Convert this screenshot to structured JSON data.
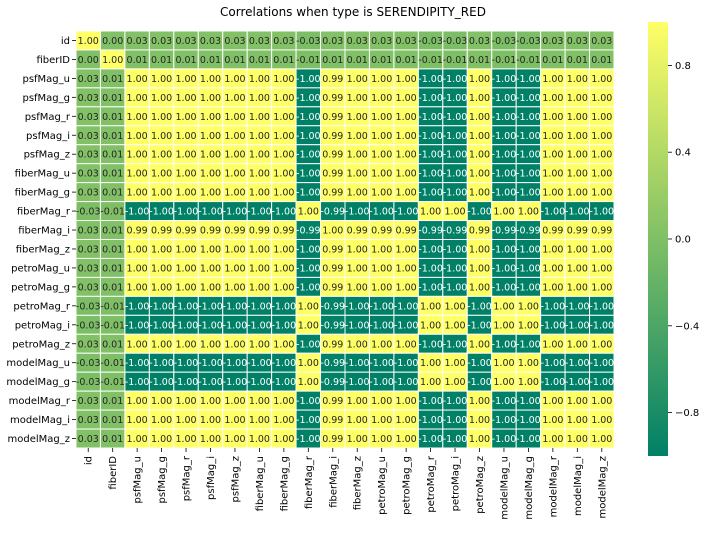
{
  "chart_data": {
    "type": "heatmap",
    "title": "Correlations when type is SERENDIPITY_RED",
    "labels": [
      "id",
      "fiberID",
      "psfMag_u",
      "psfMag_g",
      "psfMag_r",
      "psfMag_i",
      "psfMag_z",
      "fiberMag_u",
      "fiberMag_g",
      "fiberMag_r",
      "fiberMag_i",
      "fiberMag_z",
      "petroMag_u",
      "petroMag_g",
      "petroMag_r",
      "petroMag_i",
      "petroMag_z",
      "modelMag_u",
      "modelMag_g",
      "modelMag_r",
      "modelMag_i",
      "modelMag_z"
    ],
    "values": [
      [
        1.0,
        0.0,
        0.03,
        0.03,
        0.03,
        0.03,
        0.03,
        0.03,
        0.03,
        -0.03,
        0.03,
        0.03,
        0.03,
        0.03,
        -0.03,
        -0.03,
        0.03,
        -0.03,
        -0.03,
        0.03,
        0.03,
        0.03
      ],
      [
        0.0,
        1.0,
        0.01,
        0.01,
        0.01,
        0.01,
        0.01,
        0.01,
        0.01,
        -0.01,
        0.01,
        0.01,
        0.01,
        0.01,
        -0.01,
        -0.01,
        0.01,
        -0.01,
        -0.01,
        0.01,
        0.01,
        0.01
      ],
      [
        0.03,
        0.01,
        1.0,
        1.0,
        1.0,
        1.0,
        1.0,
        1.0,
        1.0,
        -1.0,
        0.99,
        1.0,
        1.0,
        1.0,
        -1.0,
        -1.0,
        1.0,
        -1.0,
        -1.0,
        1.0,
        1.0,
        1.0
      ],
      [
        0.03,
        0.01,
        1.0,
        1.0,
        1.0,
        1.0,
        1.0,
        1.0,
        1.0,
        -1.0,
        0.99,
        1.0,
        1.0,
        1.0,
        -1.0,
        -1.0,
        1.0,
        -1.0,
        -1.0,
        1.0,
        1.0,
        1.0
      ],
      [
        0.03,
        0.01,
        1.0,
        1.0,
        1.0,
        1.0,
        1.0,
        1.0,
        1.0,
        -1.0,
        0.99,
        1.0,
        1.0,
        1.0,
        -1.0,
        -1.0,
        1.0,
        -1.0,
        -1.0,
        1.0,
        1.0,
        1.0
      ],
      [
        0.03,
        0.01,
        1.0,
        1.0,
        1.0,
        1.0,
        1.0,
        1.0,
        1.0,
        -1.0,
        0.99,
        1.0,
        1.0,
        1.0,
        -1.0,
        -1.0,
        1.0,
        -1.0,
        -1.0,
        1.0,
        1.0,
        1.0
      ],
      [
        0.03,
        0.01,
        1.0,
        1.0,
        1.0,
        1.0,
        1.0,
        1.0,
        1.0,
        -1.0,
        0.99,
        1.0,
        1.0,
        1.0,
        -1.0,
        -1.0,
        1.0,
        -1.0,
        -1.0,
        1.0,
        1.0,
        1.0
      ],
      [
        0.03,
        0.01,
        1.0,
        1.0,
        1.0,
        1.0,
        1.0,
        1.0,
        1.0,
        -1.0,
        0.99,
        1.0,
        1.0,
        1.0,
        -1.0,
        -1.0,
        1.0,
        -1.0,
        -1.0,
        1.0,
        1.0,
        1.0
      ],
      [
        0.03,
        0.01,
        1.0,
        1.0,
        1.0,
        1.0,
        1.0,
        1.0,
        1.0,
        -1.0,
        0.99,
        1.0,
        1.0,
        1.0,
        -1.0,
        -1.0,
        1.0,
        -1.0,
        -1.0,
        1.0,
        1.0,
        1.0
      ],
      [
        -0.03,
        -0.01,
        -1.0,
        -1.0,
        -1.0,
        -1.0,
        -1.0,
        -1.0,
        -1.0,
        1.0,
        -0.99,
        -1.0,
        -1.0,
        -1.0,
        1.0,
        1.0,
        -1.0,
        1.0,
        1.0,
        -1.0,
        -1.0,
        -1.0
      ],
      [
        0.03,
        0.01,
        0.99,
        0.99,
        0.99,
        0.99,
        0.99,
        0.99,
        0.99,
        -0.99,
        1.0,
        0.99,
        0.99,
        0.99,
        -0.99,
        -0.99,
        0.99,
        -0.99,
        -0.99,
        0.99,
        0.99,
        0.99
      ],
      [
        0.03,
        0.01,
        1.0,
        1.0,
        1.0,
        1.0,
        1.0,
        1.0,
        1.0,
        -1.0,
        0.99,
        1.0,
        1.0,
        1.0,
        -1.0,
        -1.0,
        1.0,
        -1.0,
        -1.0,
        1.0,
        1.0,
        1.0
      ],
      [
        0.03,
        0.01,
        1.0,
        1.0,
        1.0,
        1.0,
        1.0,
        1.0,
        1.0,
        -1.0,
        0.99,
        1.0,
        1.0,
        1.0,
        -1.0,
        -1.0,
        1.0,
        -1.0,
        -1.0,
        1.0,
        1.0,
        1.0
      ],
      [
        0.03,
        0.01,
        1.0,
        1.0,
        1.0,
        1.0,
        1.0,
        1.0,
        1.0,
        -1.0,
        0.99,
        1.0,
        1.0,
        1.0,
        -1.0,
        -1.0,
        1.0,
        -1.0,
        -1.0,
        1.0,
        1.0,
        1.0
      ],
      [
        -0.03,
        -0.01,
        -1.0,
        -1.0,
        -1.0,
        -1.0,
        -1.0,
        -1.0,
        -1.0,
        1.0,
        -0.99,
        -1.0,
        -1.0,
        -1.0,
        1.0,
        1.0,
        -1.0,
        1.0,
        1.0,
        -1.0,
        -1.0,
        -1.0
      ],
      [
        -0.03,
        -0.01,
        -1.0,
        -1.0,
        -1.0,
        -1.0,
        -1.0,
        -1.0,
        -1.0,
        1.0,
        -0.99,
        -1.0,
        -1.0,
        -1.0,
        1.0,
        1.0,
        -1.0,
        1.0,
        1.0,
        -1.0,
        -1.0,
        -1.0
      ],
      [
        0.03,
        0.01,
        1.0,
        1.0,
        1.0,
        1.0,
        1.0,
        1.0,
        1.0,
        -1.0,
        0.99,
        1.0,
        1.0,
        1.0,
        -1.0,
        -1.0,
        1.0,
        -1.0,
        -1.0,
        1.0,
        1.0,
        1.0
      ],
      [
        -0.03,
        -0.01,
        -1.0,
        -1.0,
        -1.0,
        -1.0,
        -1.0,
        -1.0,
        -1.0,
        1.0,
        -0.99,
        -1.0,
        -1.0,
        -1.0,
        1.0,
        1.0,
        -1.0,
        1.0,
        1.0,
        -1.0,
        -1.0,
        -1.0
      ],
      [
        -0.03,
        -0.01,
        -1.0,
        -1.0,
        -1.0,
        -1.0,
        -1.0,
        -1.0,
        -1.0,
        1.0,
        -0.99,
        -1.0,
        -1.0,
        -1.0,
        1.0,
        1.0,
        -1.0,
        1.0,
        1.0,
        -1.0,
        -1.0,
        -1.0
      ],
      [
        0.03,
        0.01,
        1.0,
        1.0,
        1.0,
        1.0,
        1.0,
        1.0,
        1.0,
        -1.0,
        0.99,
        1.0,
        1.0,
        1.0,
        -1.0,
        -1.0,
        1.0,
        -1.0,
        -1.0,
        1.0,
        1.0,
        1.0
      ],
      [
        0.03,
        0.01,
        1.0,
        1.0,
        1.0,
        1.0,
        1.0,
        1.0,
        1.0,
        -1.0,
        0.99,
        1.0,
        1.0,
        1.0,
        -1.0,
        -1.0,
        1.0,
        -1.0,
        -1.0,
        1.0,
        1.0,
        1.0
      ],
      [
        0.03,
        0.01,
        1.0,
        1.0,
        1.0,
        1.0,
        1.0,
        1.0,
        1.0,
        -1.0,
        0.99,
        1.0,
        1.0,
        1.0,
        -1.0,
        -1.0,
        1.0,
        -1.0,
        -1.0,
        1.0,
        1.0,
        1.0
      ]
    ],
    "value_format": "0.00",
    "colormap": "summer",
    "cmap_low_color": "#008066",
    "cmap_high_color": "#ffff66",
    "vmin": -1.0,
    "vmax": 1.0,
    "colorbar_ticks": [
      "-0.8",
      "-0.4",
      "0.0",
      "0.4",
      "0.8"
    ],
    "grid_line_color": "#ffffff"
  }
}
